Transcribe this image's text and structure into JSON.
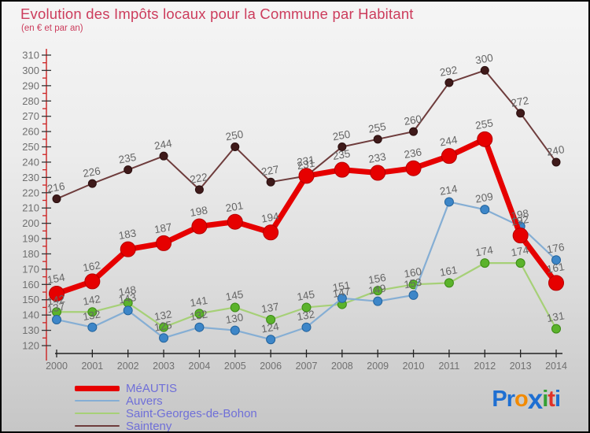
{
  "header": {
    "title": "Evolution des Impôts locaux pour la Commune par Habitant",
    "subtitle": "(en € et par an)"
  },
  "chart_data": {
    "type": "line",
    "title": "Evolution des Impôts locaux pour la Commune par Habitant",
    "subtitle": "(en € et par an)",
    "x": [
      "2000",
      "2001",
      "2002",
      "2003",
      "2004",
      "2005",
      "2006",
      "2007",
      "2008",
      "2009",
      "2010",
      "2011",
      "2012",
      "2013",
      "2014"
    ],
    "ylim": [
      120,
      310
    ],
    "ytick_step": 10,
    "grid": false,
    "legend_position": "bottom-left",
    "axis": {
      "y_axis_color": "#cc2222",
      "x_axis_color": "#222222",
      "tick_label_color": "#707070",
      "data_label_color": "#666666"
    },
    "series": [
      {
        "name": "MéAUTIS",
        "line_color": "#e60000",
        "point_color": "#e60000",
        "point_stroke": "#b50000",
        "line_width": 7,
        "point_radius": 9.5,
        "values": [
          154,
          162,
          183,
          187,
          198,
          201,
          194,
          231,
          235,
          233,
          236,
          244,
          255,
          192,
          161
        ]
      },
      {
        "name": "Auvers",
        "line_color": "#85aed4",
        "point_color": "#3d86c8",
        "point_stroke": "#23639c",
        "line_width": 2.2,
        "point_radius": 5.5,
        "values": [
          137,
          132,
          143,
          125,
          132,
          130,
          124,
          132,
          151,
          149,
          153,
          214,
          209,
          198,
          176
        ]
      },
      {
        "name": "Saint-Georges-de-Bohon",
        "line_color": "#a6d077",
        "point_color": "#5bb32b",
        "point_stroke": "#3c8a16",
        "line_width": 2.2,
        "point_radius": 5.5,
        "values": [
          142,
          142,
          148,
          132,
          141,
          145,
          137,
          145,
          147,
          156,
          160,
          161,
          174,
          174,
          131
        ]
      },
      {
        "name": "Sainteny",
        "line_color": "#6e3c3c",
        "point_color": "#3f1a1a",
        "point_stroke": "#2b0f0f",
        "line_width": 2,
        "point_radius": 5,
        "values": [
          216,
          226,
          235,
          244,
          222,
          250,
          227,
          231,
          250,
          255,
          260,
          292,
          300,
          272,
          240
        ]
      }
    ]
  },
  "legend": {
    "items": [
      {
        "label": "MéAUTIS",
        "color": "#e60000",
        "thick": true
      },
      {
        "label": "Auvers",
        "color": "#85aed4",
        "thick": false
      },
      {
        "label": "Saint-Georges-de-Bohon",
        "color": "#a6d077",
        "thick": false
      },
      {
        "label": "Sainteny",
        "color": "#6e3c3c",
        "thick": false
      }
    ]
  },
  "logo": {
    "letters": [
      {
        "ch": "P",
        "color": "#1e6fd2",
        "big": false
      },
      {
        "ch": "r",
        "color": "#1e6fd2",
        "big": false
      },
      {
        "ch": "o",
        "color": "#f28a00",
        "big": false
      },
      {
        "ch": "x",
        "color": "#1e6fd2",
        "big": true
      },
      {
        "ch": "i",
        "color": "#33a033",
        "big": false
      },
      {
        "ch": "t",
        "color": "#e03128",
        "big": false
      },
      {
        "ch": "i",
        "color": "#1e6fd2",
        "big": false
      }
    ]
  }
}
